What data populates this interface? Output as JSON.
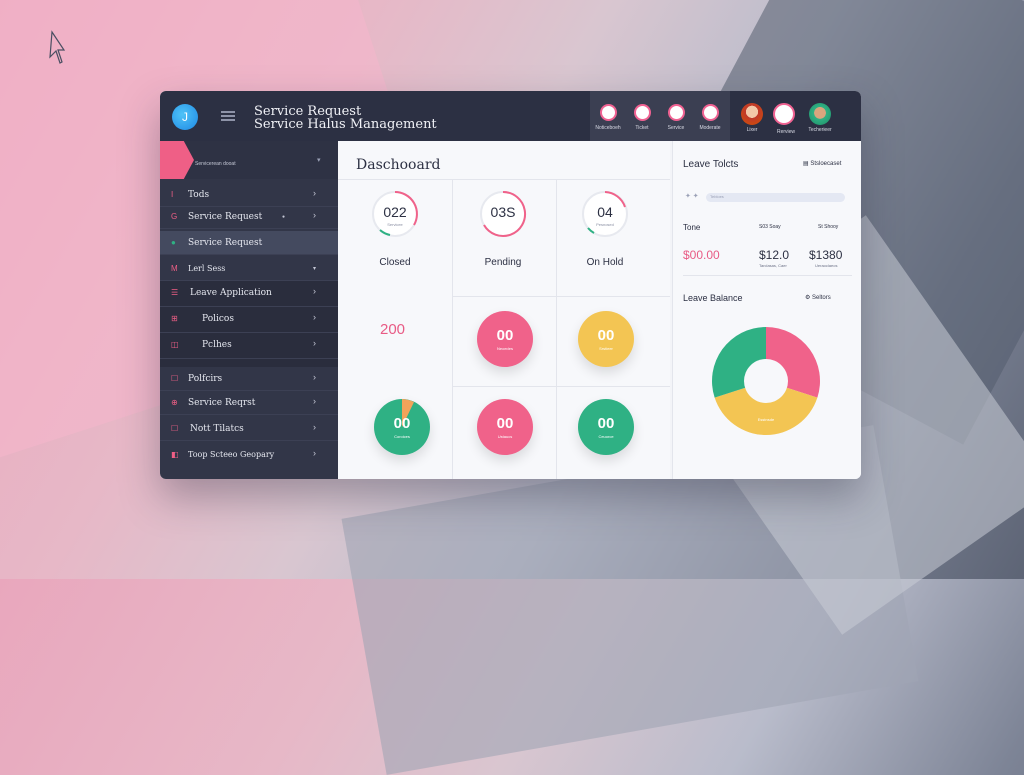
{
  "header": {
    "logo_glyph": "J",
    "title_line1": "Service Request",
    "title_line2": "Service Halus Management",
    "actions": [
      {
        "icon": "notification-icon",
        "label": "Noticeboeh"
      },
      {
        "icon": "ticket-icon",
        "label": "Ticket"
      },
      {
        "icon": "service-icon",
        "label": "Service"
      },
      {
        "icon": "settings-icon",
        "label": "Moderate"
      }
    ],
    "users": [
      {
        "label": "Lixer"
      },
      {
        "label": "Rerview"
      },
      {
        "label": "Techerieer"
      }
    ]
  },
  "sidebar": {
    "top_label": "Servicerean dooat",
    "items": [
      {
        "icon": "I",
        "label": "Tods"
      },
      {
        "icon": "G",
        "label": "Service Request"
      },
      {
        "icon": "●",
        "label": "Service Request"
      },
      {
        "icon": "M",
        "label": "Lerl Sess"
      },
      {
        "icon": "☰",
        "label": "Leave Application"
      },
      {
        "icon": "⊞",
        "label": "Policos"
      },
      {
        "icon": "◫",
        "label": "Pclhes"
      },
      {
        "icon": "☐",
        "label": "Polfcirs"
      },
      {
        "icon": "⊕",
        "label": "Service Reqrst"
      },
      {
        "icon": "☐",
        "label": "Nott Tilatcs"
      },
      {
        "icon": "◧",
        "label": "Toop Scteeo Geopary"
      }
    ]
  },
  "dashboard": {
    "title": "Daschooard",
    "rings": [
      {
        "value": "022",
        "sub": "Servicee",
        "label": "Closed"
      },
      {
        "value": "03S",
        "sub": "",
        "label": "Pending"
      },
      {
        "value": "04",
        "sub": "Pesnosed",
        "label": "On Hold"
      }
    ],
    "big_number": "200",
    "bubbles": [
      {
        "value": "00",
        "sub": "Neoedes",
        "color": "#f0628a"
      },
      {
        "value": "00",
        "sub": "Srstieer",
        "color": "#f3c553"
      },
      {
        "value": "00",
        "sub": "Coroices",
        "color": "#2fb184"
      },
      {
        "value": "00",
        "sub": "Ustaucs",
        "color": "#f0628a"
      },
      {
        "value": "00",
        "sub": "Ceuorce",
        "color": "#2fb184"
      }
    ]
  },
  "right_panel": {
    "leave_title": "Leave Tolcts",
    "leave_link": "Stsloecaset",
    "search_placeholder": "Tebloes",
    "col_tone": "Tone",
    "col_2": "S03 Soay",
    "col_3": "St Shooy",
    "val_1": "$00.00",
    "val_2": "$12.0",
    "val_3": "$1380",
    "sub_2": "Tarclasas, Caer",
    "sub_3": "Ueraoclaeos",
    "balance_title": "Leave Balance",
    "balance_link": "Seltors",
    "pie_label": "Esstnsde"
  },
  "chart_data": {
    "type": "pie",
    "donut": true,
    "title": "Leave Balance",
    "slices": [
      {
        "value": 30,
        "color": "#f0628a"
      },
      {
        "value": 40,
        "color": "#f3c553"
      },
      {
        "value": 30,
        "color": "#2fb184"
      }
    ]
  },
  "colors": {
    "accent": "#ef5f86",
    "header_bg": "#2c3043",
    "sidebar_bg": "#323648"
  }
}
